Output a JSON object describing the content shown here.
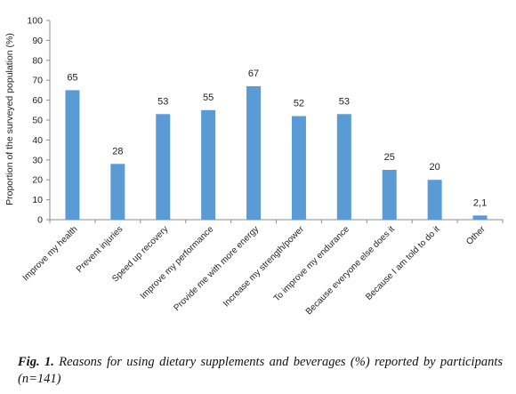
{
  "chart_data": {
    "type": "bar",
    "ylabel": "Proportion of the surveyed population (%)",
    "xlabel": "",
    "ylim": [
      0,
      100
    ],
    "ytick_step": 10,
    "grid": false,
    "bar_color": "#5b9bd5",
    "categories": [
      "Improve my health",
      "Prevent injuries",
      "Speed up recovery",
      "Improve my performance",
      "Provide me with more energy",
      "Increase my strength/power",
      "To improve my endurance",
      "Because everyone else does it",
      "Because I am told to do it",
      "Other"
    ],
    "values": [
      65,
      28,
      53,
      55,
      67,
      52,
      53,
      25,
      20,
      2.1
    ],
    "value_labels": [
      "65",
      "28",
      "53",
      "55",
      "67",
      "52",
      "53",
      "25",
      "20",
      "2,1"
    ]
  },
  "caption": {
    "label": "Fig. 1.",
    "text": "Reasons for using dietary supplements and beverages (%) reported by participants (n=141)"
  }
}
